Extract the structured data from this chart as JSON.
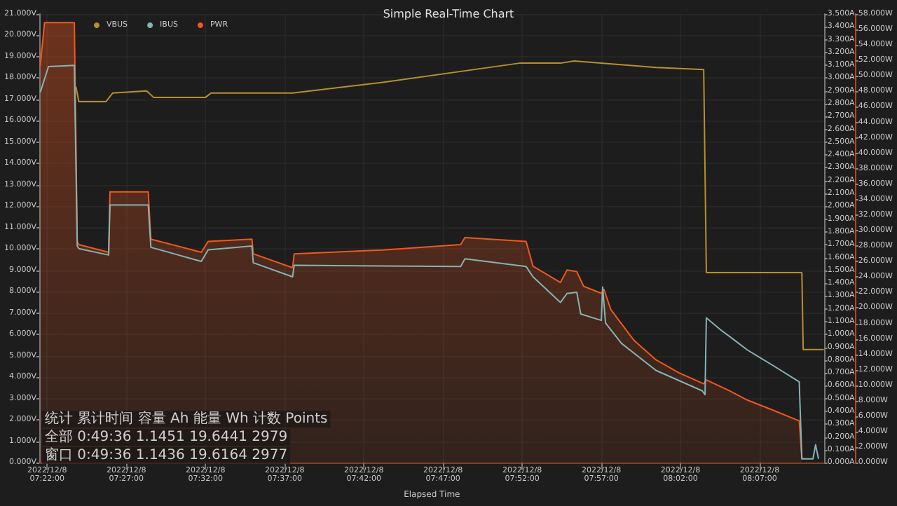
{
  "chart_data": {
    "type": "line",
    "title": "Simple Real-Time Chart",
    "xlabel": "Elapsed Time",
    "legend": "top left",
    "grid": true,
    "annotations": [
      "统计 累计时间 容量 Ah 能量 Wh 计数 Points",
      "全部 0:49:36 1.1451 19.6441 2979",
      "窗口 0:49:36 1.1436 19.6164 2977"
    ],
    "xlim": [
      "2022-12-08T07:21:30",
      "2022-12-08T08:11:06"
    ],
    "xticks": [
      {
        "value": "2022-12-08T07:22",
        "label": "2022/12/8\n07:22:00"
      },
      {
        "value": "2022-12-08T07:27",
        "label": "2022/12/8\n07:27:00"
      },
      {
        "value": "2022-12-08T07:32",
        "label": "2022/12/8\n07:32:00"
      },
      {
        "value": "2022-12-08T07:37",
        "label": "2022/12/8\n07:37:00"
      },
      {
        "value": "2022-12-08T07:42",
        "label": "2022/12/8\n07:42:00"
      },
      {
        "value": "2022-12-08T07:47",
        "label": "2022/12/8\n07:47:00"
      },
      {
        "value": "2022-12-08T07:52",
        "label": "2022/12/8\n07:52:00"
      },
      {
        "value": "2022-12-08T07:57",
        "label": "2022/12/8\n07:57:00"
      },
      {
        "value": "2022-12-08T08:02",
        "label": "2022/12/8\n08:02:00"
      },
      {
        "value": "2022-12-08T08:07",
        "label": "2022/12/8\n08:07:00"
      }
    ],
    "ylim": [
      0,
      21
    ],
    "yticks": [
      {
        "value": 0,
        "label": "0.000V"
      },
      {
        "value": 1,
        "label": "1.000V"
      },
      {
        "value": 2,
        "label": "2.000V"
      },
      {
        "value": 3,
        "label": "3.000V"
      },
      {
        "value": 4,
        "label": "4.000V"
      },
      {
        "value": 5,
        "label": "5.000V"
      },
      {
        "value": 6,
        "label": "6.000V"
      },
      {
        "value": 7,
        "label": "7.000V"
      },
      {
        "value": 8,
        "label": "8.000V"
      },
      {
        "value": 9,
        "label": "9.000V"
      },
      {
        "value": 10,
        "label": "10.000V"
      },
      {
        "value": 11,
        "label": "11.000V"
      },
      {
        "value": 12,
        "label": "12.000V"
      },
      {
        "value": 13,
        "label": "13.000V"
      },
      {
        "value": 14,
        "label": "14.000V"
      },
      {
        "value": 15,
        "label": "15.000V"
      },
      {
        "value": 16,
        "label": "16.000V"
      },
      {
        "value": 17,
        "label": "17.000V"
      },
      {
        "value": 18,
        "label": "18.000V"
      },
      {
        "value": 19,
        "label": "19.000V"
      },
      {
        "value": 20,
        "label": "20.000V"
      },
      {
        "value": 21,
        "label": "21.000V"
      }
    ],
    "y2lim": [
      0,
      3.5
    ],
    "y2ticks": [
      {
        "value": 0,
        "label": "0.000A"
      },
      {
        "value": 0.1,
        "label": "0.100A"
      },
      {
        "value": 0.2,
        "label": "0.200A"
      },
      {
        "value": 0.3,
        "label": "0.300A"
      },
      {
        "value": 0.4,
        "label": "0.400A"
      },
      {
        "value": 0.5,
        "label": "0.500A"
      },
      {
        "value": 0.6,
        "label": "0.600A"
      },
      {
        "value": 0.7,
        "label": "0.700A"
      },
      {
        "value": 0.8,
        "label": "0.800A"
      },
      {
        "value": 0.9,
        "label": "0.900A"
      },
      {
        "value": 1,
        "label": "1.000A"
      },
      {
        "value": 1.1,
        "label": "1.100A"
      },
      {
        "value": 1.2,
        "label": "1.200A"
      },
      {
        "value": 1.3,
        "label": "1.300A"
      },
      {
        "value": 1.4,
        "label": "1.400A"
      },
      {
        "value": 1.5,
        "label": "1.500A"
      },
      {
        "value": 1.6,
        "label": "1.600A"
      },
      {
        "value": 1.7,
        "label": "1.700A"
      },
      {
        "value": 1.8,
        "label": "1.800A"
      },
      {
        "value": 1.9,
        "label": "1.900A"
      },
      {
        "value": 2,
        "label": "2.000A"
      },
      {
        "value": 2.1,
        "label": "2.100A"
      },
      {
        "value": 2.2,
        "label": "2.200A"
      },
      {
        "value": 2.3,
        "label": "2.300A"
      },
      {
        "value": 2.4,
        "label": "2.400A"
      },
      {
        "value": 2.5,
        "label": "2.500A"
      },
      {
        "value": 2.6,
        "label": "2.600A"
      },
      {
        "value": 2.7,
        "label": "2.700A"
      },
      {
        "value": 2.8,
        "label": "2.800A"
      },
      {
        "value": 2.9,
        "label": "2.900A"
      },
      {
        "value": 3,
        "label": "3.000A"
      },
      {
        "value": 3.1,
        "label": "3.100A"
      },
      {
        "value": 3.2,
        "label": "3.200A"
      },
      {
        "value": 3.3,
        "label": "3.300A"
      },
      {
        "value": 3.4,
        "label": "3.400A"
      },
      {
        "value": 3.5,
        "label": "3.500A"
      }
    ],
    "y3lim": [
      0,
      58
    ],
    "y3ticks": [
      {
        "value": 0,
        "label": "0.000W"
      },
      {
        "value": 2,
        "label": "2.000W"
      },
      {
        "value": 4,
        "label": "4.000W"
      },
      {
        "value": 6,
        "label": "6.000W"
      },
      {
        "value": 8,
        "label": "8.000W"
      },
      {
        "value": 10,
        "label": "10.000W"
      },
      {
        "value": 12,
        "label": "12.000W"
      },
      {
        "value": 14,
        "label": "14.000W"
      },
      {
        "value": 16,
        "label": "16.000W"
      },
      {
        "value": 18,
        "label": "18.000W"
      },
      {
        "value": 20,
        "label": "20.000W"
      },
      {
        "value": 22,
        "label": "22.000W"
      },
      {
        "value": 24,
        "label": "24.000W"
      },
      {
        "value": 26,
        "label": "26.000W"
      },
      {
        "value": 28,
        "label": "28.000W"
      },
      {
        "value": 30,
        "label": "30.000W"
      },
      {
        "value": 32,
        "label": "32.000W"
      },
      {
        "value": 34,
        "label": "34.000W"
      },
      {
        "value": 36,
        "label": "36.000W"
      },
      {
        "value": 38,
        "label": "38.000W"
      },
      {
        "value": 40,
        "label": "40.000W"
      },
      {
        "value": 42,
        "label": "42.000W"
      },
      {
        "value": 44,
        "label": "44.000W"
      },
      {
        "value": 46,
        "label": "46.000W"
      },
      {
        "value": 48,
        "label": "48.000W"
      },
      {
        "value": 50,
        "label": "50.000W"
      },
      {
        "value": 52,
        "label": "52.000W"
      },
      {
        "value": 54,
        "label": "54.000W"
      },
      {
        "value": 56,
        "label": "56.000W"
      },
      {
        "value": 58,
        "label": "58.000W"
      }
    ],
    "series": [
      {
        "name": "VBUS",
        "type": "line",
        "color": "#b8902c",
        "x": [
          "2022-12-08T07:23:49",
          "2022-12-08T07:24:00",
          "2022-12-08T07:25:43",
          "2022-12-08T07:26:08",
          "2022-12-08T07:28:17",
          "2022-12-08T07:28:43",
          "2022-12-08T07:32:00",
          "2022-12-08T07:32:21",
          "2022-12-08T07:37:30",
          "2022-12-08T07:43:12",
          "2022-12-08T07:51:50",
          "2022-12-08T07:54:25",
          "2022-12-08T07:55:17",
          "2022-12-08T08:00:27",
          "2022-12-08T08:03:28",
          "2022-12-08T08:03:38",
          "2022-12-08T08:09:40",
          "2022-12-08T08:09:45",
          "2022-12-08T08:11:03"
        ],
        "values": [
          17.6,
          16.9,
          16.9,
          17.3,
          17.4,
          17.1,
          17.1,
          17.3,
          17.3,
          17.8,
          18.7,
          18.7,
          18.8,
          18.5,
          18.4,
          8.9,
          8.9,
          5.3,
          5.3
        ]
      },
      {
        "name": "IBUS",
        "type": "line",
        "axis": "y2",
        "color": "#86b3b5",
        "x": [
          "2022-12-08T07:21:34",
          "2022-12-08T07:22:05",
          "2022-12-08T07:23:43",
          "2022-12-08T07:23:54",
          "2022-12-08T07:24:00",
          "2022-12-08T07:25:53",
          "2022-12-08T07:25:58",
          "2022-12-08T07:28:23",
          "2022-12-08T07:28:33",
          "2022-12-08T07:31:44",
          "2022-12-08T07:32:10",
          "2022-12-08T07:34:56",
          "2022-12-08T07:35:01",
          "2022-12-08T07:37:30",
          "2022-12-08T07:37:36",
          "2022-12-08T07:48:07",
          "2022-12-08T07:48:23",
          "2022-12-08T07:52:15",
          "2022-12-08T07:52:41",
          "2022-12-08T07:54:25",
          "2022-12-08T07:54:50",
          "2022-12-08T07:55:27",
          "2022-12-08T07:55:42",
          "2022-12-08T07:57:00",
          "2022-12-08T07:57:05",
          "2022-12-08T07:57:16",
          "2022-12-08T07:58:17",
          "2022-12-08T08:00:27",
          "2022-12-08T08:03:23",
          "2022-12-08T08:03:33",
          "2022-12-08T08:03:38",
          "2022-12-08T08:04:30",
          "2022-12-08T08:05:22",
          "2022-12-08T08:06:13",
          "2022-12-08T08:07:57",
          "2022-12-08T08:09:30",
          "2022-12-08T08:09:40",
          "2022-12-08T08:10:22",
          "2022-12-08T08:10:32",
          "2022-12-08T08:10:43"
        ],
        "values": [
          2.89,
          3.09,
          3.1,
          1.69,
          1.67,
          1.62,
          2.01,
          2.01,
          1.68,
          1.57,
          1.66,
          1.69,
          1.56,
          1.45,
          1.54,
          1.53,
          1.59,
          1.53,
          1.45,
          1.25,
          1.32,
          1.33,
          1.16,
          1.11,
          1.37,
          1.09,
          0.93,
          0.72,
          0.56,
          0.53,
          1.13,
          1.04,
          0.96,
          0.88,
          0.75,
          0.63,
          0.03,
          0.03,
          0.14,
          0.03
        ]
      },
      {
        "name": "PWR",
        "type": "area",
        "axis": "y3",
        "color": "#f2571c",
        "x": [
          "2022-12-08T07:21:34",
          "2022-12-08T07:21:50",
          "2022-12-08T07:23:43",
          "2022-12-08T07:23:54",
          "2022-12-08T07:24:00",
          "2022-12-08T07:25:53",
          "2022-12-08T07:25:58",
          "2022-12-08T07:28:23",
          "2022-12-08T07:28:33",
          "2022-12-08T07:31:44",
          "2022-12-08T07:32:10",
          "2022-12-08T07:34:56",
          "2022-12-08T07:35:01",
          "2022-12-08T07:37:30",
          "2022-12-08T07:37:36",
          "2022-12-08T07:43:12",
          "2022-12-08T07:48:07",
          "2022-12-08T07:48:23",
          "2022-12-08T07:52:15",
          "2022-12-08T07:52:41",
          "2022-12-08T07:54:25",
          "2022-12-08T07:54:50",
          "2022-12-08T07:55:27",
          "2022-12-08T07:55:53",
          "2022-12-08T07:57:00",
          "2022-12-08T07:57:10",
          "2022-12-08T07:57:36",
          "2022-12-08T07:59:04",
          "2022-12-08T08:00:27",
          "2022-12-08T08:01:55",
          "2022-12-08T08:03:28",
          "2022-12-08T08:03:38",
          "2022-12-08T08:05:06",
          "2022-12-08T08:06:13",
          "2022-12-08T08:07:57",
          "2022-12-08T08:09:30",
          "2022-12-08T08:09:40"
        ],
        "values": [
          51.3,
          56.9,
          56.9,
          28.6,
          28.2,
          27.2,
          35.0,
          35.0,
          28.9,
          27.2,
          28.6,
          28.9,
          27.0,
          25.2,
          27.0,
          27.5,
          28.2,
          29.1,
          28.6,
          25.4,
          23.3,
          24.9,
          24.7,
          22.8,
          21.9,
          22.4,
          19.8,
          15.8,
          13.3,
          11.6,
          10.2,
          10.7,
          9.3,
          8.1,
          6.7,
          5.4,
          0.5
        ]
      }
    ]
  }
}
